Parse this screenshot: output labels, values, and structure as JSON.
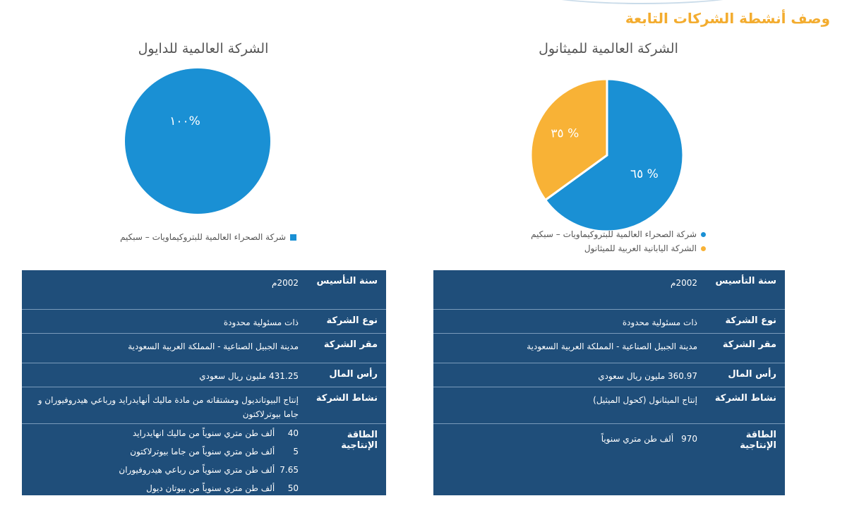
{
  "page": {
    "title": "وصف أنشطة الشركات التابعة",
    "colors": {
      "accent": "#f3ac2f",
      "pie_blue": "#1a90d4",
      "pie_orange": "#f8b236",
      "table_bg": "#1f4e7a"
    }
  },
  "chart_data": [
    {
      "type": "pie",
      "title": "الشركة العالمية للميثانول",
      "categories": [
        "شركة الصحراء العالمية للبتروكيماويات – سبكيم",
        "الشركة اليابانية العربية للميثانول"
      ],
      "values": [
        65,
        35
      ],
      "labels": [
        "٦٥ %",
        "٣٥ %"
      ],
      "colors": [
        "#1a90d4",
        "#f8b236"
      ],
      "legend_position": "bottom"
    },
    {
      "type": "pie",
      "title": "الشركة العالمية للدايول",
      "categories": [
        "شركة الصحراء العالمية للبتروكيماويات – سبكيم"
      ],
      "values": [
        100
      ],
      "labels": [
        "١٠٠%"
      ],
      "colors": [
        "#1a90d4"
      ],
      "legend_position": "bottom"
    }
  ],
  "tables": {
    "methanol": {
      "rows": [
        {
          "key": "سنة التأسيس",
          "value": "2002م"
        },
        {
          "key": "نوع الشركة",
          "value": "ذات مسئولية محدودة"
        },
        {
          "key": "مقر الشركة",
          "value": "مدينة الجبيل الصناعية - المملكة العربية السعودية"
        },
        {
          "key": "رأس المال",
          "value": "360.97 مليون ريال سعودي"
        },
        {
          "key": "نشاط الشركة",
          "value": "إنتاج الميثانول (كحول الميثيل)"
        }
      ],
      "capacity": {
        "key": "الطاقة الإنتاجية",
        "lines": [
          {
            "num": "970",
            "text": "ألف طن متري سنوياً"
          }
        ]
      }
    },
    "diol": {
      "rows": [
        {
          "key": "سنة التأسيس",
          "value": "2002م"
        },
        {
          "key": "نوع الشركة",
          "value": "ذات مسئولية محدودة"
        },
        {
          "key": "مقر الشركة",
          "value": "مدينة الجبيل الصناعية - المملكة العربية السعودية"
        },
        {
          "key": "رأس المال",
          "value": "431.25 مليون ريال سعودي"
        },
        {
          "key": "نشاط الشركة",
          "value": "إنتاج البيوتانديول ومشتقاته من مادة ماليك أنهايدرايد ورباعي هيدروفيوران و جاما بيوترلاكتون"
        }
      ],
      "capacity": {
        "key": "الطاقة الإنتاجية",
        "lines": [
          {
            "num": "40",
            "text": "ألف طن متري سنوياً  من ماليك انهايدرايد"
          },
          {
            "num": "5",
            "text": "ألف طن متري سنوياً من جاما بيوترلاكتون"
          },
          {
            "num": "7.65",
            "text": "ألف طن متري سنوياً من رباعي هيدروفيوران"
          },
          {
            "num": "50",
            "text": "ألف طن متري سنوياً  من بيوتان ديول"
          }
        ]
      }
    }
  }
}
